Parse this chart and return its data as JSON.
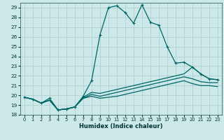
{
  "title": "",
  "xlabel": "Humidex (Indice chaleur)",
  "xlim": [
    -0.5,
    23.5
  ],
  "ylim": [
    18,
    29.5
  ],
  "xticks": [
    0,
    1,
    2,
    3,
    4,
    5,
    6,
    7,
    8,
    9,
    10,
    11,
    12,
    13,
    14,
    15,
    16,
    17,
    18,
    19,
    20,
    21,
    22,
    23
  ],
  "yticks": [
    18,
    19,
    20,
    21,
    22,
    23,
    24,
    25,
    26,
    27,
    28,
    29
  ],
  "bg_color": "#cce8e8",
  "grid_color": "#aacccc",
  "line_color": "#006666",
  "series": [
    {
      "x": [
        0,
        1,
        2,
        3,
        4,
        5,
        6,
        7,
        8,
        9,
        10,
        11,
        12,
        13,
        14,
        15,
        16,
        17,
        18,
        19,
        20,
        21,
        22,
        23
      ],
      "y": [
        19.8,
        19.6,
        19.2,
        19.7,
        18.5,
        18.6,
        18.8,
        19.9,
        21.5,
        26.2,
        29.0,
        29.2,
        28.5,
        27.4,
        29.3,
        27.5,
        27.2,
        25.0,
        23.3,
        23.4,
        22.9,
        22.2,
        21.7,
        21.6
      ],
      "marker": "+"
    },
    {
      "x": [
        0,
        1,
        2,
        3,
        4,
        5,
        6,
        7,
        8,
        9,
        10,
        11,
        12,
        13,
        14,
        15,
        16,
        17,
        18,
        19,
        20,
        21,
        22,
        23
      ],
      "y": [
        19.8,
        19.6,
        19.2,
        19.5,
        18.5,
        18.6,
        18.8,
        19.8,
        20.3,
        20.2,
        20.4,
        20.6,
        20.8,
        21.0,
        21.2,
        21.4,
        21.6,
        21.8,
        22.0,
        22.2,
        22.9,
        22.2,
        21.7,
        21.6
      ],
      "marker": "None"
    },
    {
      "x": [
        0,
        1,
        2,
        3,
        4,
        5,
        6,
        7,
        8,
        9,
        10,
        11,
        12,
        13,
        14,
        15,
        16,
        17,
        18,
        19,
        20,
        21,
        22,
        23
      ],
      "y": [
        19.8,
        19.6,
        19.2,
        19.5,
        18.5,
        18.6,
        18.8,
        19.7,
        20.1,
        19.9,
        20.1,
        20.3,
        20.5,
        20.7,
        20.9,
        21.1,
        21.3,
        21.5,
        21.7,
        21.9,
        21.7,
        21.4,
        21.3,
        21.3
      ],
      "marker": "None"
    },
    {
      "x": [
        0,
        1,
        2,
        3,
        4,
        5,
        6,
        7,
        8,
        9,
        10,
        11,
        12,
        13,
        14,
        15,
        16,
        17,
        18,
        19,
        20,
        21,
        22,
        23
      ],
      "y": [
        19.8,
        19.6,
        19.2,
        19.5,
        18.5,
        18.6,
        18.8,
        19.7,
        19.9,
        19.7,
        19.8,
        19.9,
        20.1,
        20.3,
        20.5,
        20.7,
        20.9,
        21.1,
        21.3,
        21.5,
        21.2,
        21.0,
        21.0,
        20.9
      ],
      "marker": "None"
    }
  ]
}
